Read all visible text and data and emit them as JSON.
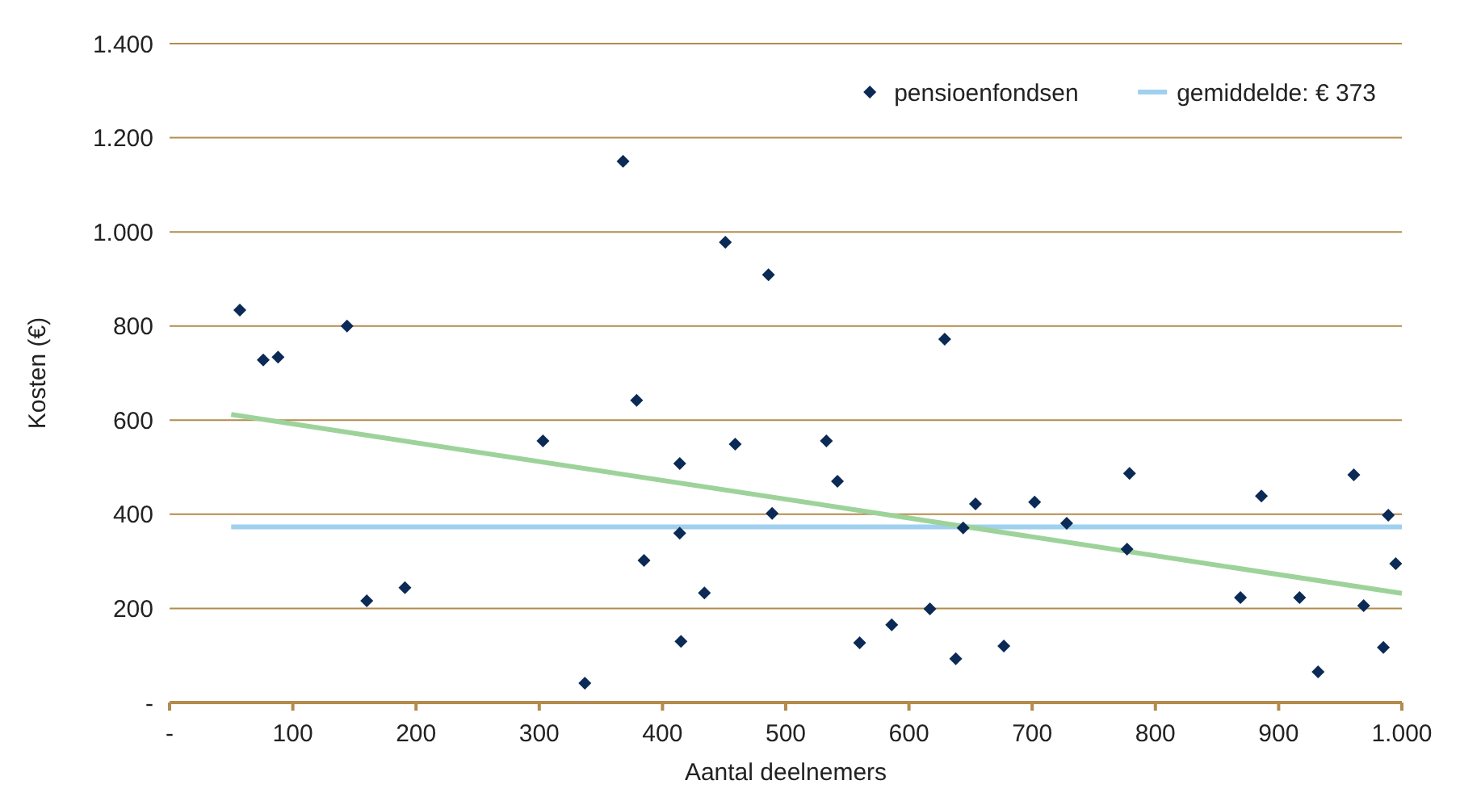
{
  "chart_data": {
    "type": "scatter",
    "xlabel": "Aantal deelnemers",
    "ylabel": "Kosten (€)",
    "xlim": [
      0,
      1000
    ],
    "ylim": [
      0,
      1400
    ],
    "xticks": [
      {
        "value": 0,
        "label": "-"
      },
      100,
      200,
      300,
      400,
      500,
      600,
      700,
      800,
      900,
      {
        "value": 1000,
        "label": "1.000"
      }
    ],
    "yticks": [
      {
        "value": 0,
        "label": "-"
      },
      200,
      400,
      600,
      800,
      {
        "value": 1000,
        "label": "1.000"
      },
      {
        "value": 1200,
        "label": "1.200"
      },
      {
        "value": 1400,
        "label": "1.400"
      }
    ],
    "grid": "y",
    "legend": "top right",
    "series": [
      {
        "name": "pensioenfondsen",
        "marker": "diamond",
        "color": "#0b2a55",
        "x": [
          57,
          76,
          88,
          144,
          160,
          191,
          303,
          337,
          368,
          379,
          385,
          414,
          414,
          415,
          434,
          451,
          459,
          486,
          489,
          533,
          542,
          560,
          586,
          617,
          629,
          638,
          644,
          654,
          677,
          702,
          728,
          777,
          779,
          869,
          886,
          917,
          932,
          961,
          969,
          985,
          989,
          995
        ],
        "values": [
          834,
          728,
          734,
          800,
          216,
          244,
          556,
          41,
          1150,
          642,
          302,
          508,
          360,
          130,
          233,
          978,
          549,
          909,
          402,
          556,
          470,
          127,
          165,
          199,
          772,
          93,
          371,
          422,
          120,
          426,
          381,
          326,
          487,
          223,
          439,
          223,
          65,
          484,
          206,
          117,
          398,
          295
        ]
      },
      {
        "name": "gemiddelde: € 373",
        "type": "line",
        "marker": "none",
        "color": "#9fd0ee",
        "x": [
          50,
          1000
        ],
        "values": [
          373,
          373
        ]
      },
      {
        "type": "line",
        "marker": "none",
        "color": "#9dd39a",
        "x": [
          50,
          1000
        ],
        "values": [
          612,
          232
        ]
      }
    ]
  }
}
